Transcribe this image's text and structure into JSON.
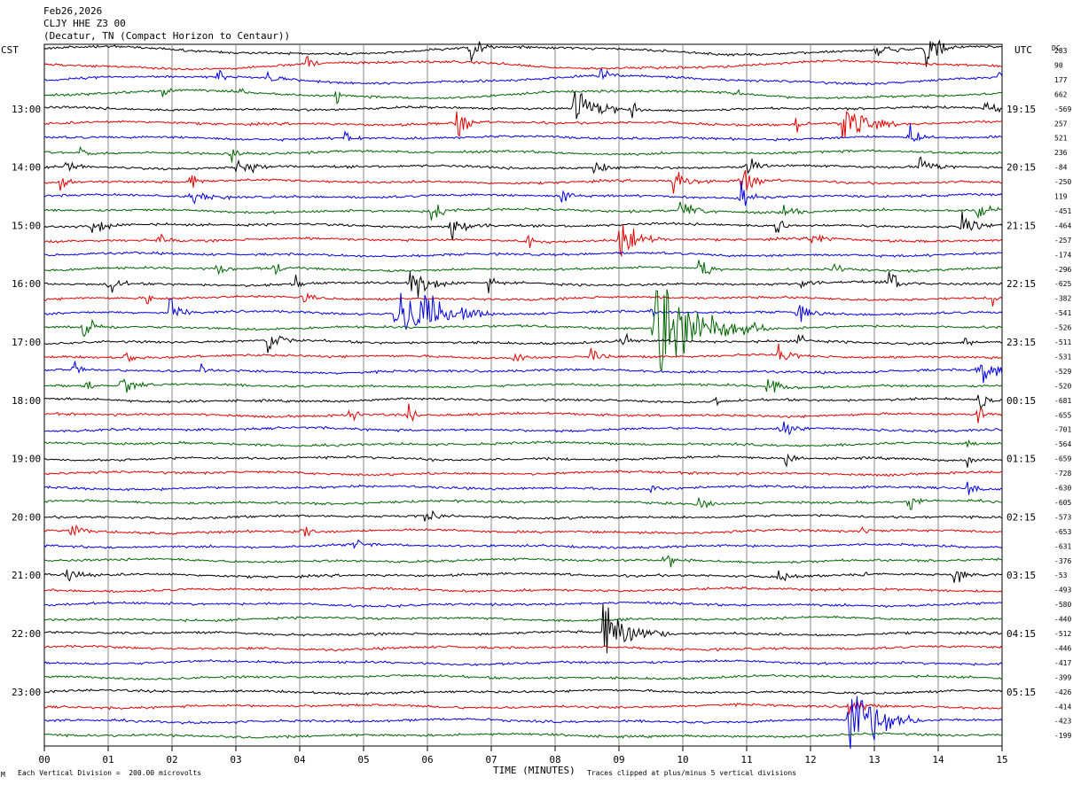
{
  "header": {
    "date": "Feb26,2026",
    "station": "CLJY HHE Z3 00",
    "location": "(Decatur, TN (Compact Horizon to Centaur))"
  },
  "left_zone_label": "CST",
  "right_zone_label": "UTC",
  "dc_label": "DC",
  "footer": {
    "scale_note": "Each Vertical Division =  200.00 microvolts",
    "xlabel": "TIME (MINUTES)",
    "clip_note": "Traces clipped at plus/minus 5 vertical divisions",
    "corner_mark": "M"
  },
  "chart_data": {
    "type": "line",
    "title": "CLJY HHE Z3 00",
    "xlabel": "TIME (MINUTES)",
    "xlim": [
      0,
      15
    ],
    "x_ticks": [
      "00",
      "01",
      "02",
      "03",
      "04",
      "05",
      "06",
      "07",
      "08",
      "09",
      "10",
      "11",
      "12",
      "13",
      "14",
      "15"
    ],
    "row_minutes": 15,
    "row_count": 48,
    "start_time_cst": "12:00",
    "grid": "vertical lines each minute",
    "series_colors": [
      "#000000",
      "#e00000",
      "#0000e0",
      "#006400"
    ],
    "left_time_labels": [
      {
        "row": 4,
        "label": "13:00"
      },
      {
        "row": 8,
        "label": "14:00"
      },
      {
        "row": 12,
        "label": "15:00"
      },
      {
        "row": 16,
        "label": "16:00"
      },
      {
        "row": 20,
        "label": "17:00"
      },
      {
        "row": 24,
        "label": "18:00"
      },
      {
        "row": 28,
        "label": "19:00"
      },
      {
        "row": 32,
        "label": "20:00"
      },
      {
        "row": 36,
        "label": "21:00"
      },
      {
        "row": 40,
        "label": "22:00"
      },
      {
        "row": 44,
        "label": "23:00"
      }
    ],
    "right_time_labels": [
      {
        "row": 4,
        "label": "19:15"
      },
      {
        "row": 8,
        "label": "20:15"
      },
      {
        "row": 12,
        "label": "21:15"
      },
      {
        "row": 16,
        "label": "22:15"
      },
      {
        "row": 20,
        "label": "23:15"
      },
      {
        "row": 24,
        "label": "00:15"
      },
      {
        "row": 28,
        "label": "01:15"
      },
      {
        "row": 32,
        "label": "02:15"
      },
      {
        "row": 36,
        "label": "03:15"
      },
      {
        "row": 40,
        "label": "04:15"
      },
      {
        "row": 44,
        "label": "05:15"
      }
    ],
    "dc_offsets": [
      "283",
      "90",
      "177",
      "662",
      "-569",
      "257",
      "521",
      "236",
      "-84",
      "-250",
      "119",
      "-451",
      "-464",
      "-257",
      "-174",
      "-296",
      "-625",
      "-382",
      "-541",
      "-526",
      "-511",
      "-531",
      "-529",
      "-520",
      "-681",
      "-655",
      "-701",
      "-564",
      "-659",
      "-728",
      "-630",
      "-605",
      "-573",
      "-653",
      "-631",
      "-376",
      "-53",
      "-493",
      "-580",
      "-440",
      "-512",
      "-446",
      "-417",
      "-399",
      "-426",
      "-414",
      "-423",
      "-199"
    ],
    "events": [
      {
        "row": 0,
        "minute": 6.65,
        "amp": 1.0,
        "dur": 0.15
      },
      {
        "row": 0,
        "minute": 13.8,
        "amp": 0.9,
        "dur": 0.2
      },
      {
        "row": 0,
        "minute": 13.0,
        "amp": 0.3,
        "dur": 0.3
      },
      {
        "row": 1,
        "minute": 4.1,
        "amp": 0.4,
        "dur": 0.1
      },
      {
        "row": 2,
        "minute": 2.7,
        "amp": 0.5,
        "dur": 0.1
      },
      {
        "row": 2,
        "minute": 8.7,
        "amp": 0.6,
        "dur": 0.15
      },
      {
        "row": 2,
        "minute": 3.5,
        "amp": 0.4,
        "dur": 0.1
      },
      {
        "row": 2,
        "minute": 14.95,
        "amp": 0.6,
        "dur": 0.1
      },
      {
        "row": 3,
        "minute": 1.85,
        "amp": 0.6,
        "dur": 0.1
      },
      {
        "row": 3,
        "minute": 3.05,
        "amp": 0.4,
        "dur": 0.1
      },
      {
        "row": 3,
        "minute": 4.55,
        "amp": 0.4,
        "dur": 0.1
      },
      {
        "row": 3,
        "minute": 10.8,
        "amp": 0.4,
        "dur": 0.1
      },
      {
        "row": 4,
        "minute": 8.3,
        "amp": 1.2,
        "dur": 0.3
      },
      {
        "row": 4,
        "minute": 9.2,
        "amp": 0.4,
        "dur": 0.1
      },
      {
        "row": 4,
        "minute": 14.7,
        "amp": 0.4,
        "dur": 0.2
      },
      {
        "row": 5,
        "minute": 6.45,
        "amp": 1.0,
        "dur": 0.15
      },
      {
        "row": 5,
        "minute": 12.45,
        "amp": 1.4,
        "dur": 0.3
      },
      {
        "row": 5,
        "minute": 11.75,
        "amp": 0.5,
        "dur": 0.1
      },
      {
        "row": 6,
        "minute": 4.7,
        "amp": 0.5,
        "dur": 0.1
      },
      {
        "row": 6,
        "minute": 13.55,
        "amp": 0.7,
        "dur": 0.15
      },
      {
        "row": 7,
        "minute": 0.55,
        "amp": 0.5,
        "dur": 0.1
      },
      {
        "row": 7,
        "minute": 2.9,
        "amp": 0.5,
        "dur": 0.1
      },
      {
        "row": 8,
        "minute": 0.3,
        "amp": 0.6,
        "dur": 0.15
      },
      {
        "row": 8,
        "minute": 3.0,
        "amp": 0.5,
        "dur": 0.3
      },
      {
        "row": 8,
        "minute": 8.6,
        "amp": 0.5,
        "dur": 0.2
      },
      {
        "row": 8,
        "minute": 11.0,
        "amp": 0.5,
        "dur": 0.15
      },
      {
        "row": 8,
        "minute": 13.7,
        "amp": 0.6,
        "dur": 0.2
      },
      {
        "row": 9,
        "minute": 0.25,
        "amp": 0.5,
        "dur": 0.15
      },
      {
        "row": 9,
        "minute": 2.3,
        "amp": 0.5,
        "dur": 0.1
      },
      {
        "row": 9,
        "minute": 9.85,
        "amp": 0.6,
        "dur": 0.2
      },
      {
        "row": 9,
        "minute": 10.9,
        "amp": 0.8,
        "dur": 0.2
      },
      {
        "row": 10,
        "minute": 2.3,
        "amp": 0.5,
        "dur": 0.2
      },
      {
        "row": 10,
        "minute": 8.1,
        "amp": 0.7,
        "dur": 0.1
      },
      {
        "row": 10,
        "minute": 10.9,
        "amp": 0.6,
        "dur": 0.2
      },
      {
        "row": 11,
        "minute": 6.05,
        "amp": 0.5,
        "dur": 0.2
      },
      {
        "row": 11,
        "minute": 9.95,
        "amp": 0.7,
        "dur": 0.2
      },
      {
        "row": 11,
        "minute": 11.55,
        "amp": 0.4,
        "dur": 0.3
      },
      {
        "row": 11,
        "minute": 14.6,
        "amp": 0.4,
        "dur": 0.2
      },
      {
        "row": 12,
        "minute": 0.75,
        "amp": 0.5,
        "dur": 0.2
      },
      {
        "row": 12,
        "minute": 6.35,
        "amp": 0.6,
        "dur": 0.3
      },
      {
        "row": 12,
        "minute": 11.45,
        "amp": 0.6,
        "dur": 0.1
      },
      {
        "row": 12,
        "minute": 14.35,
        "amp": 0.6,
        "dur": 0.2
      },
      {
        "row": 13,
        "minute": 1.8,
        "amp": 0.5,
        "dur": 0.1
      },
      {
        "row": 13,
        "minute": 7.55,
        "amp": 0.5,
        "dur": 0.15
      },
      {
        "row": 13,
        "minute": 9.0,
        "amp": 0.9,
        "dur": 0.3
      },
      {
        "row": 13,
        "minute": 12.0,
        "amp": 0.5,
        "dur": 0.15
      },
      {
        "row": 15,
        "minute": 2.7,
        "amp": 0.6,
        "dur": 0.1
      },
      {
        "row": 15,
        "minute": 3.6,
        "amp": 0.4,
        "dur": 0.1
      },
      {
        "row": 15,
        "minute": 10.25,
        "amp": 0.8,
        "dur": 0.15
      },
      {
        "row": 15,
        "minute": 12.35,
        "amp": 0.4,
        "dur": 0.1
      },
      {
        "row": 16,
        "minute": 1.0,
        "amp": 0.5,
        "dur": 0.15
      },
      {
        "row": 16,
        "minute": 3.9,
        "amp": 0.6,
        "dur": 0.1
      },
      {
        "row": 16,
        "minute": 5.7,
        "amp": 0.8,
        "dur": 0.3
      },
      {
        "row": 16,
        "minute": 6.95,
        "amp": 0.4,
        "dur": 0.1
      },
      {
        "row": 16,
        "minute": 11.85,
        "amp": 0.5,
        "dur": 0.15
      },
      {
        "row": 16,
        "minute": 13.2,
        "amp": 0.9,
        "dur": 0.15
      },
      {
        "row": 17,
        "minute": 1.6,
        "amp": 0.4,
        "dur": 0.1
      },
      {
        "row": 17,
        "minute": 4.05,
        "amp": 0.4,
        "dur": 0.1
      },
      {
        "row": 17,
        "minute": 14.85,
        "amp": 0.4,
        "dur": 0.1
      },
      {
        "row": 18,
        "minute": 1.95,
        "amp": 0.7,
        "dur": 0.15
      },
      {
        "row": 18,
        "minute": 5.5,
        "amp": 2.2,
        "dur": 0.5
      },
      {
        "row": 18,
        "minute": 9.45,
        "amp": 0.4,
        "dur": 0.1
      },
      {
        "row": 18,
        "minute": 11.8,
        "amp": 0.5,
        "dur": 0.15
      },
      {
        "row": 19,
        "minute": 0.6,
        "amp": 0.7,
        "dur": 0.2
      },
      {
        "row": 19,
        "minute": 9.55,
        "amp": 2.8,
        "dur": 0.6
      },
      {
        "row": 20,
        "minute": 3.5,
        "amp": 0.7,
        "dur": 0.2
      },
      {
        "row": 20,
        "minute": 9.05,
        "amp": 0.5,
        "dur": 0.1
      },
      {
        "row": 20,
        "minute": 11.8,
        "amp": 0.4,
        "dur": 0.1
      },
      {
        "row": 20,
        "minute": 14.4,
        "amp": 0.4,
        "dur": 0.1
      },
      {
        "row": 21,
        "minute": 1.25,
        "amp": 0.4,
        "dur": 0.1
      },
      {
        "row": 21,
        "minute": 7.35,
        "amp": 0.4,
        "dur": 0.15
      },
      {
        "row": 21,
        "minute": 8.55,
        "amp": 0.4,
        "dur": 0.15
      },
      {
        "row": 21,
        "minute": 11.5,
        "amp": 0.5,
        "dur": 0.15
      },
      {
        "row": 22,
        "minute": 0.45,
        "amp": 0.5,
        "dur": 0.1
      },
      {
        "row": 22,
        "minute": 2.45,
        "amp": 0.4,
        "dur": 0.1
      },
      {
        "row": 22,
        "minute": 14.6,
        "amp": 0.9,
        "dur": 0.3
      },
      {
        "row": 23,
        "minute": 0.65,
        "amp": 0.4,
        "dur": 0.1
      },
      {
        "row": 23,
        "minute": 1.2,
        "amp": 0.6,
        "dur": 0.15
      },
      {
        "row": 23,
        "minute": 11.3,
        "amp": 0.5,
        "dur": 0.2
      },
      {
        "row": 24,
        "minute": 10.5,
        "amp": 0.3,
        "dur": 0.1
      },
      {
        "row": 24,
        "minute": 14.65,
        "amp": 0.6,
        "dur": 0.1
      },
      {
        "row": 25,
        "minute": 4.8,
        "amp": 0.5,
        "dur": 0.1
      },
      {
        "row": 25,
        "minute": 5.7,
        "amp": 0.5,
        "dur": 0.1
      },
      {
        "row": 25,
        "minute": 14.6,
        "amp": 0.6,
        "dur": 0.1
      },
      {
        "row": 26,
        "minute": 11.55,
        "amp": 0.7,
        "dur": 0.15
      },
      {
        "row": 26,
        "minute": 13.1,
        "amp": 0.3,
        "dur": 0.1
      },
      {
        "row": 27,
        "minute": 14.45,
        "amp": 0.4,
        "dur": 0.1
      },
      {
        "row": 28,
        "minute": 11.6,
        "amp": 0.5,
        "dur": 0.1
      },
      {
        "row": 28,
        "minute": 14.45,
        "amp": 0.4,
        "dur": 0.1
      },
      {
        "row": 30,
        "minute": 9.5,
        "amp": 0.4,
        "dur": 0.1
      },
      {
        "row": 30,
        "minute": 14.45,
        "amp": 0.4,
        "dur": 0.1
      },
      {
        "row": 31,
        "minute": 10.25,
        "amp": 0.4,
        "dur": 0.1
      },
      {
        "row": 31,
        "minute": 13.55,
        "amp": 0.6,
        "dur": 0.1
      },
      {
        "row": 32,
        "minute": 5.95,
        "amp": 0.4,
        "dur": 0.15
      },
      {
        "row": 33,
        "minute": 0.4,
        "amp": 0.5,
        "dur": 0.15
      },
      {
        "row": 33,
        "minute": 4.05,
        "amp": 0.6,
        "dur": 0.1
      },
      {
        "row": 33,
        "minute": 12.8,
        "amp": 0.3,
        "dur": 0.1
      },
      {
        "row": 34,
        "minute": 4.85,
        "amp": 0.5,
        "dur": 0.1
      },
      {
        "row": 35,
        "minute": 9.7,
        "amp": 0.5,
        "dur": 0.15
      },
      {
        "row": 36,
        "minute": 0.3,
        "amp": 0.5,
        "dur": 0.2
      },
      {
        "row": 36,
        "minute": 11.5,
        "amp": 0.3,
        "dur": 0.15
      },
      {
        "row": 36,
        "minute": 12.75,
        "amp": 0.3,
        "dur": 0.1
      },
      {
        "row": 36,
        "minute": 14.25,
        "amp": 0.6,
        "dur": 0.1
      },
      {
        "row": 40,
        "minute": 8.75,
        "amp": 1.6,
        "dur": 0.35
      },
      {
        "row": 45,
        "minute": 12.6,
        "amp": 0.5,
        "dur": 0.2
      },
      {
        "row": 46,
        "minute": 12.6,
        "amp": 2.0,
        "dur": 0.4
      }
    ]
  }
}
